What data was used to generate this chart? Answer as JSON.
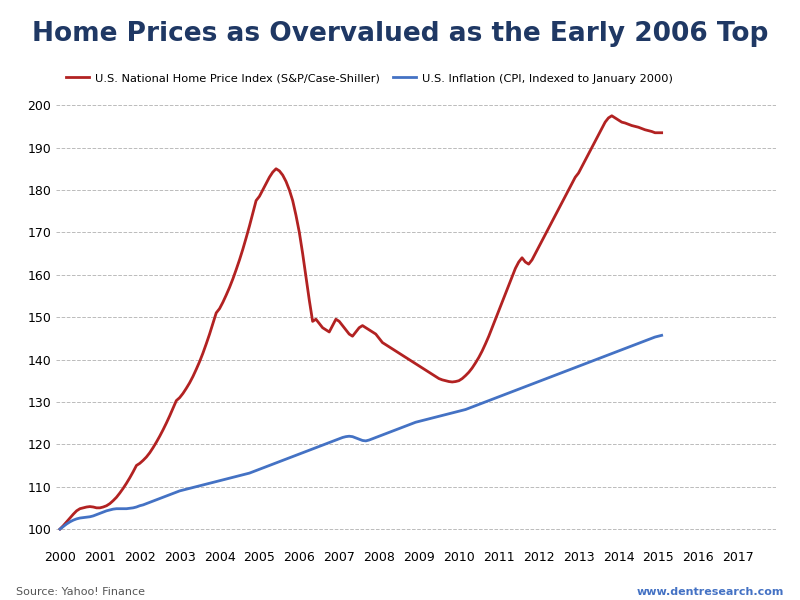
{
  "title": "Home Prices as Overvalued as the Early 2006 Top",
  "title_color": "#1F3864",
  "title_fontsize": 19,
  "legend_label_hpi": "U.S. National Home Price Index (S&P/Case-Shiller)",
  "legend_label_cpi": "U.S. Inflation (CPI, Indexed to January 2000)",
  "source_text": "Source: Yahoo! Finance",
  "website_text": "www.dentresearch.com",
  "hpi_color": "#B22222",
  "cpi_color": "#4472C4",
  "background_color": "#FFFFFF",
  "ylim": [
    96,
    205
  ],
  "yticks": [
    100,
    110,
    120,
    130,
    140,
    150,
    160,
    170,
    180,
    190,
    200
  ],
  "grid_color": "#AAAAAA",
  "line_width": 2.0,
  "hpi_data": [
    100.0,
    100.8,
    101.7,
    102.6,
    103.5,
    104.3,
    104.8,
    105.0,
    105.2,
    105.3,
    105.2,
    105.0,
    105.0,
    105.2,
    105.5,
    106.0,
    106.7,
    107.5,
    108.5,
    109.6,
    110.8,
    112.1,
    113.5,
    115.0,
    115.5,
    116.2,
    117.0,
    118.0,
    119.2,
    120.5,
    121.9,
    123.4,
    125.0,
    126.7,
    128.5,
    130.3,
    131.0,
    132.0,
    133.2,
    134.5,
    136.0,
    137.7,
    139.5,
    141.5,
    143.7,
    146.0,
    148.5,
    151.0,
    152.0,
    153.5,
    155.2,
    157.0,
    159.0,
    161.2,
    163.5,
    166.0,
    168.7,
    171.5,
    174.5,
    177.5,
    178.5,
    180.0,
    181.5,
    183.0,
    184.2,
    185.0,
    184.5,
    183.5,
    182.0,
    180.0,
    177.5,
    174.0,
    170.0,
    165.0,
    159.5,
    154.0,
    149.0,
    149.5,
    148.5,
    147.5,
    147.0,
    146.5,
    148.0,
    149.5,
    149.0,
    148.0,
    147.0,
    146.0,
    145.5,
    146.5,
    147.5,
    148.0,
    147.5,
    147.0,
    146.5,
    146.0,
    145.0,
    144.0,
    143.5,
    143.0,
    142.5,
    142.0,
    141.5,
    141.0,
    140.5,
    140.0,
    139.5,
    139.0,
    138.5,
    138.0,
    137.5,
    137.0,
    136.5,
    136.0,
    135.5,
    135.2,
    135.0,
    134.8,
    134.7,
    134.8,
    135.0,
    135.5,
    136.2,
    137.0,
    138.0,
    139.2,
    140.5,
    142.0,
    143.7,
    145.5,
    147.5,
    149.5,
    151.5,
    153.5,
    155.5,
    157.5,
    159.5,
    161.5,
    163.0,
    164.0,
    163.0,
    162.5,
    163.5,
    165.0,
    166.5,
    168.0,
    169.5,
    171.0,
    172.5,
    174.0,
    175.5,
    177.0,
    178.5,
    180.0,
    181.5,
    183.0,
    184.0,
    185.5,
    187.0,
    188.5,
    190.0,
    191.5,
    193.0,
    194.5,
    196.0,
    197.0,
    197.5,
    197.0,
    196.5,
    196.0,
    195.8,
    195.5,
    195.2,
    195.0,
    194.8,
    194.5,
    194.2,
    194.0,
    193.8,
    193.5,
    193.5,
    193.5
  ],
  "cpi_data": [
    100.0,
    100.6,
    101.2,
    101.7,
    102.1,
    102.4,
    102.6,
    102.7,
    102.8,
    102.9,
    103.1,
    103.4,
    103.7,
    104.0,
    104.3,
    104.5,
    104.7,
    104.8,
    104.8,
    104.8,
    104.8,
    104.9,
    105.0,
    105.2,
    105.5,
    105.7,
    106.0,
    106.3,
    106.6,
    106.9,
    107.2,
    107.5,
    107.8,
    108.1,
    108.4,
    108.7,
    109.0,
    109.2,
    109.4,
    109.6,
    109.8,
    110.0,
    110.2,
    110.4,
    110.6,
    110.8,
    111.0,
    111.2,
    111.4,
    111.6,
    111.8,
    112.0,
    112.2,
    112.4,
    112.6,
    112.8,
    113.0,
    113.2,
    113.5,
    113.8,
    114.1,
    114.4,
    114.7,
    115.0,
    115.3,
    115.6,
    115.9,
    116.2,
    116.5,
    116.8,
    117.1,
    117.4,
    117.7,
    118.0,
    118.3,
    118.6,
    118.9,
    119.2,
    119.5,
    119.8,
    120.1,
    120.4,
    120.7,
    121.0,
    121.3,
    121.6,
    121.8,
    121.9,
    121.8,
    121.5,
    121.2,
    120.9,
    120.8,
    121.0,
    121.3,
    121.6,
    121.9,
    122.2,
    122.5,
    122.8,
    123.1,
    123.4,
    123.7,
    124.0,
    124.3,
    124.6,
    124.9,
    125.2,
    125.4,
    125.6,
    125.8,
    126.0,
    126.2,
    126.4,
    126.6,
    126.8,
    127.0,
    127.2,
    127.4,
    127.6,
    127.8,
    128.0,
    128.2,
    128.5,
    128.8,
    129.1,
    129.4,
    129.7,
    130.0,
    130.3,
    130.6,
    130.9,
    131.2,
    131.5,
    131.8,
    132.1,
    132.4,
    132.7,
    133.0,
    133.3,
    133.6,
    133.9,
    134.2,
    134.5,
    134.8,
    135.1,
    135.4,
    135.7,
    136.0,
    136.3,
    136.6,
    136.9,
    137.2,
    137.5,
    137.8,
    138.1,
    138.4,
    138.7,
    139.0,
    139.3,
    139.6,
    139.9,
    140.2,
    140.5,
    140.8,
    141.1,
    141.4,
    141.7,
    142.0,
    142.3,
    142.6,
    142.9,
    143.2,
    143.5,
    143.8,
    144.1,
    144.4,
    144.7,
    145.0,
    145.3,
    145.5,
    145.7
  ],
  "x_start_year": 2000,
  "x_end_year": 2017
}
